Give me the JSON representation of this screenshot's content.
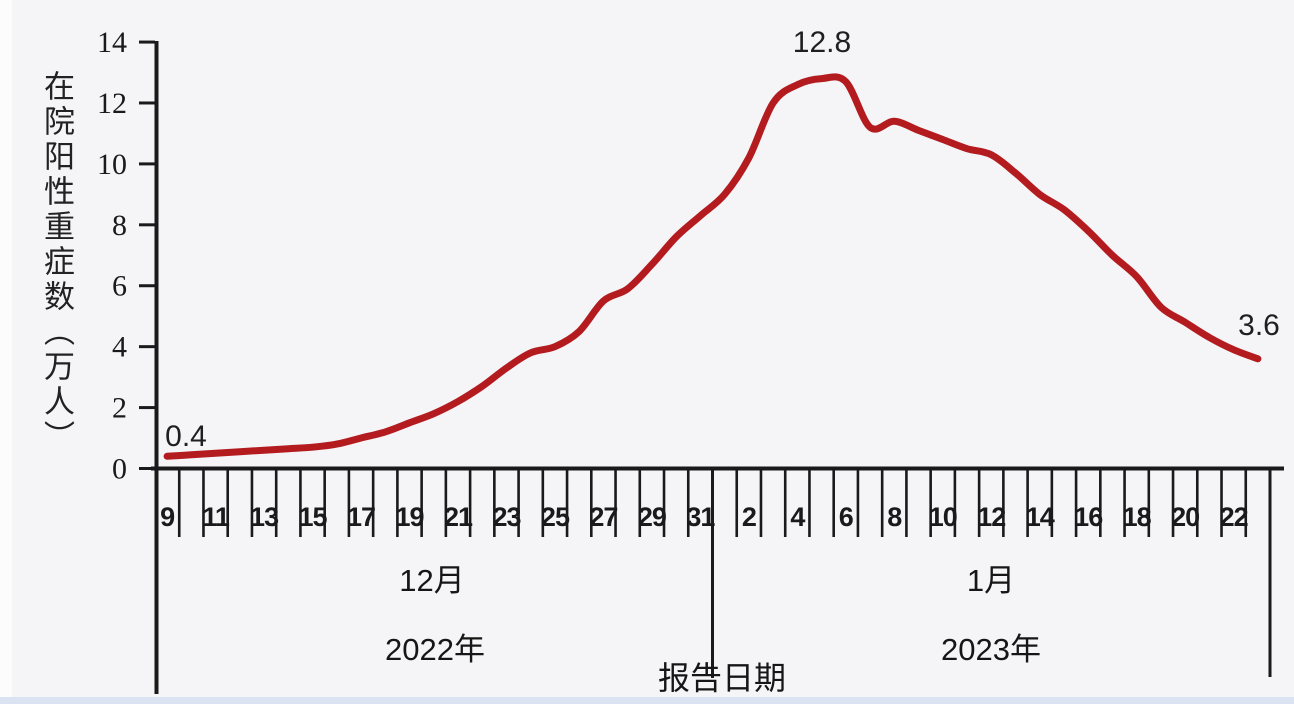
{
  "page": {
    "background": "#f5f4f7",
    "left_strip_color": "#fcfcfd",
    "bottom_strip_color": "#d9e3f1"
  },
  "chart_data": {
    "type": "line",
    "y_axis_title": "在院阳性重症数（万人）",
    "y_ticks": [
      0,
      2,
      4,
      6,
      8,
      10,
      12,
      14
    ],
    "ylim": [
      0,
      14
    ],
    "grid": false,
    "line_color": "#b31b1f",
    "axis_color": "#1a1a1a",
    "text_color": "#1a1a1a",
    "x": [
      "12/9",
      "12/10",
      "12/11",
      "12/12",
      "12/13",
      "12/14",
      "12/15",
      "12/16",
      "12/17",
      "12/18",
      "12/19",
      "12/20",
      "12/21",
      "12/22",
      "12/23",
      "12/24",
      "12/25",
      "12/26",
      "12/27",
      "12/28",
      "12/29",
      "12/30",
      "12/31",
      "1/1",
      "1/2",
      "1/3",
      "1/4",
      "1/5",
      "1/6",
      "1/7",
      "1/8",
      "1/9",
      "1/10",
      "1/11",
      "1/12",
      "1/13",
      "1/14",
      "1/15",
      "1/16",
      "1/17",
      "1/18",
      "1/19",
      "1/20",
      "1/21",
      "1/22",
      "1/23"
    ],
    "values": [
      0.4,
      0.45,
      0.5,
      0.55,
      0.6,
      0.65,
      0.7,
      0.8,
      1.0,
      1.2,
      1.5,
      1.8,
      2.2,
      2.7,
      3.3,
      3.8,
      4.0,
      4.5,
      5.5,
      5.9,
      6.7,
      7.6,
      8.3,
      9.0,
      10.2,
      12.0,
      12.6,
      12.8,
      12.7,
      11.2,
      11.4,
      11.1,
      10.8,
      10.5,
      10.3,
      9.7,
      9.0,
      8.5,
      7.8,
      7.0,
      6.3,
      5.3,
      4.8,
      4.3,
      3.9,
      3.6
    ],
    "dec_day_labels": [
      "9",
      "11",
      "13",
      "15",
      "17",
      "19",
      "21",
      "23",
      "25",
      "27",
      "29",
      "31"
    ],
    "jan_day_labels": [
      "2",
      "4",
      "6",
      "8",
      "10",
      "12",
      "14",
      "16",
      "18",
      "20",
      "22"
    ],
    "annotations": {
      "start": "0.4",
      "peak": "12.8",
      "end": "3.6"
    },
    "period_labels": {
      "dec_month": "12月",
      "dec_year": "2022年",
      "jan_month": "1月",
      "jan_year": "2023年"
    },
    "report_date_label": "报告日期"
  }
}
